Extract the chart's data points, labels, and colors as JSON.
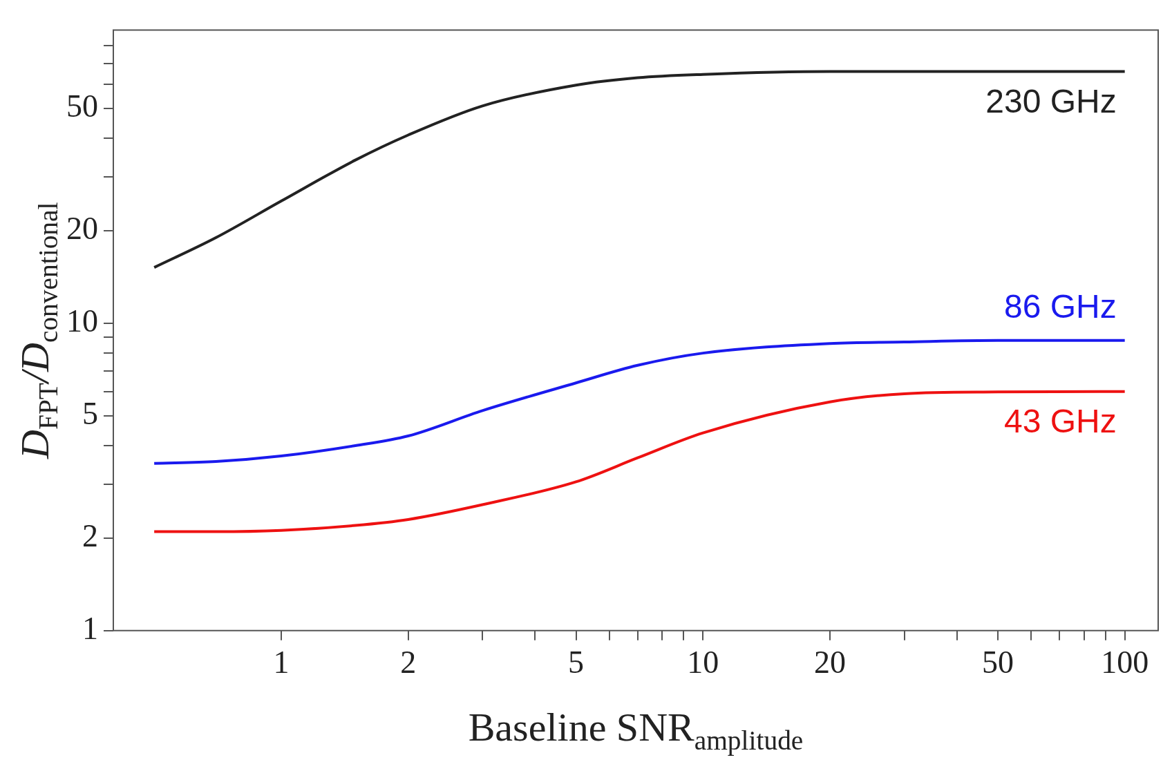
{
  "chart_data": {
    "type": "line",
    "xlabel": "Baseline SNR$_{amplitude}$",
    "ylabel": "D$_{FPT}$/D$_{conventional}$",
    "log": "xy",
    "grid": false,
    "legend": false,
    "marker": "none",
    "line_style": "solid",
    "xlim": [
      0.4,
      120
    ],
    "ylim": [
      1,
      90
    ],
    "xticks": [
      1,
      2,
      {
        "value": 3,
        "label": null
      },
      {
        "value": 4,
        "label": null
      },
      5,
      {
        "value": 6,
        "label": null
      },
      {
        "value": 7,
        "label": null
      },
      {
        "value": 8,
        "label": null
      },
      {
        "value": 9,
        "label": null
      },
      10,
      20,
      {
        "value": 30,
        "label": null
      },
      {
        "value": 40,
        "label": null
      },
      50,
      {
        "value": 60,
        "label": null
      },
      {
        "value": 70,
        "label": null
      },
      {
        "value": 80,
        "label": null
      },
      {
        "value": 90,
        "label": null
      },
      100
    ],
    "yticks": [
      1,
      2,
      {
        "value": 3,
        "label": null
      },
      {
        "value": 4,
        "label": null
      },
      5,
      {
        "value": 6,
        "label": null
      },
      {
        "value": 7,
        "label": null
      },
      {
        "value": 8,
        "label": null
      },
      {
        "value": 9,
        "label": null
      },
      10,
      20,
      {
        "value": 30,
        "label": null
      },
      {
        "value": 40,
        "label": null
      },
      50,
      {
        "value": 60,
        "label": null
      },
      {
        "value": 70,
        "label": null
      },
      {
        "value": 80,
        "label": null
      }
    ],
    "x": [
      0.5,
      0.7,
      1,
      1.5,
      2,
      3,
      5,
      7,
      10,
      20,
      30,
      50,
      100
    ],
    "series": [
      {
        "name": "230 GHz",
        "color": "#222222",
        "values": [
          15.2,
          19,
          25,
          34,
          41,
          51,
          59.6,
          63,
          64.6,
          66,
          66,
          66,
          66
        ]
      },
      {
        "name": "86 GHz",
        "color": "#1a1aee",
        "values": [
          3.5,
          3.55,
          3.7,
          4,
          4.3,
          5.2,
          6.4,
          7.3,
          8,
          8.6,
          8.7,
          8.8,
          8.8
        ]
      },
      {
        "name": "43 GHz",
        "color": "#ee1111",
        "values": [
          2.1,
          2.1,
          2.12,
          2.2,
          2.3,
          2.57,
          3.05,
          3.65,
          4.4,
          5.55,
          5.9,
          5.98,
          6
        ]
      }
    ]
  }
}
